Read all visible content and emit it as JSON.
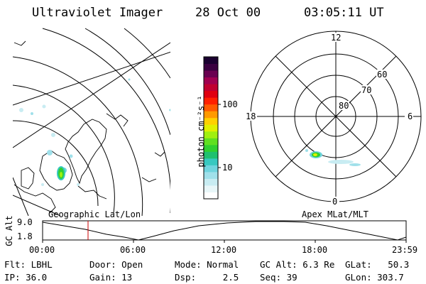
{
  "header": {
    "instrument": "Ultraviolet Imager",
    "date": "28 Oct 00",
    "time": "03:05:11 UT"
  },
  "colorbar": {
    "unit_label": "photon cm⁻²s⁻¹",
    "tick_labels": [
      "100",
      "10"
    ],
    "colors": [
      "#ffffff",
      "#e8f6f8",
      "#c8ecf2",
      "#a0e0ea",
      "#70d4de",
      "#38c8c0",
      "#20c070",
      "#30d030",
      "#60e020",
      "#a0f010",
      "#e0f000",
      "#ffd000",
      "#ff9a00",
      "#ff5a00",
      "#ff2000",
      "#e00010",
      "#c00030",
      "#a00050",
      "#6a0050",
      "#3a0040",
      "#1a0030"
    ]
  },
  "left_map": {
    "caption": "Geographic Lat/Lon"
  },
  "polar_plot": {
    "caption": "Apex MLat/MLT",
    "mlt_labels": {
      "top": "12",
      "left": "18",
      "right": "6",
      "bottom": "0"
    },
    "lat_labels": [
      "60",
      "70",
      "80"
    ]
  },
  "altitude_strip": {
    "ylabel": "GC Alt",
    "y_ticks": [
      "9.0",
      "1.8"
    ],
    "x_ticks": [
      "00:00",
      "06:00",
      "12:00",
      "18:00",
      "23:59"
    ],
    "marker_color": "#cc0000"
  },
  "status": {
    "flt": "Flt: LBHL",
    "ip": "IP: 36.0",
    "door": "Door: Open",
    "gain": "Gain: 13",
    "mode": "Mode: Normal",
    "dsp": "Dsp:     2.5",
    "gc_alt": "GC Alt: 6.3 Re",
    "seq": "Seq: 39",
    "glat": "GLat:   50.3",
    "glon": "GLon: 303.7"
  }
}
